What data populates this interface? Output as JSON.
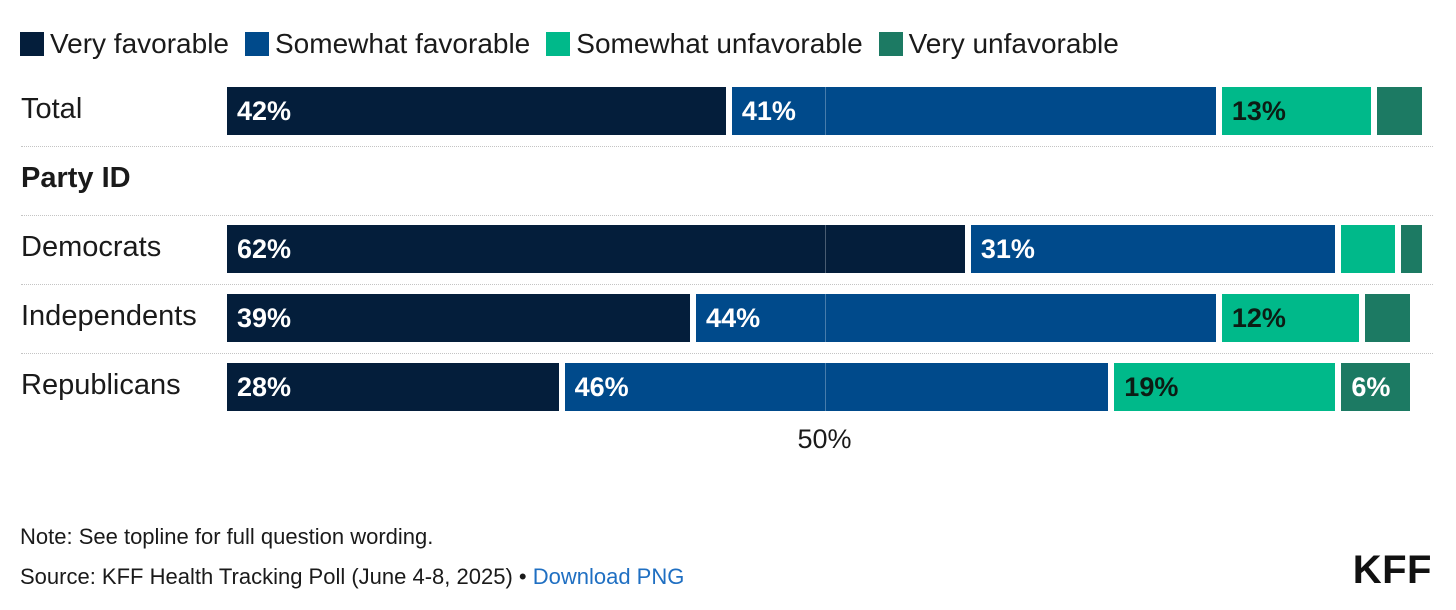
{
  "chart_data": {
    "type": "bar",
    "orientation": "horizontal",
    "stacked": true,
    "legend_position": "top-left",
    "series": [
      {
        "name": "Very favorable",
        "color": "#041e3b"
      },
      {
        "name": "Somewhat favorable",
        "color": "#004a8b"
      },
      {
        "name": "Somewhat unfavorable",
        "color": "#00b98a"
      },
      {
        "name": "Very unfavorable",
        "color": "#1c7a63"
      }
    ],
    "rows": [
      {
        "label": "Total",
        "values": [
          42,
          41,
          13,
          4
        ],
        "labels": [
          "42%",
          "41%",
          "13%",
          ""
        ]
      },
      {
        "label": "Party ID",
        "group_header": true
      },
      {
        "label": "Democrats",
        "values": [
          62,
          31,
          5,
          2
        ],
        "labels": [
          "62%",
          "31%",
          "",
          ""
        ]
      },
      {
        "label": "Independents",
        "values": [
          39,
          44,
          12,
          4
        ],
        "labels": [
          "39%",
          "44%",
          "12%",
          ""
        ]
      },
      {
        "label": "Republicans",
        "values": [
          28,
          46,
          19,
          6
        ],
        "labels": [
          "28%",
          "46%",
          "19%",
          "6%"
        ]
      }
    ],
    "x_ticks": [
      {
        "value": 50,
        "label": "50%"
      }
    ],
    "xlim": [
      0,
      100
    ]
  },
  "footer": {
    "note": "Note: See topline for full question wording.",
    "source": "Source: KFF Health Tracking Poll (June 4-8, 2025)",
    "separator": " • ",
    "download_label": "Download PNG",
    "logo": "KFF"
  }
}
